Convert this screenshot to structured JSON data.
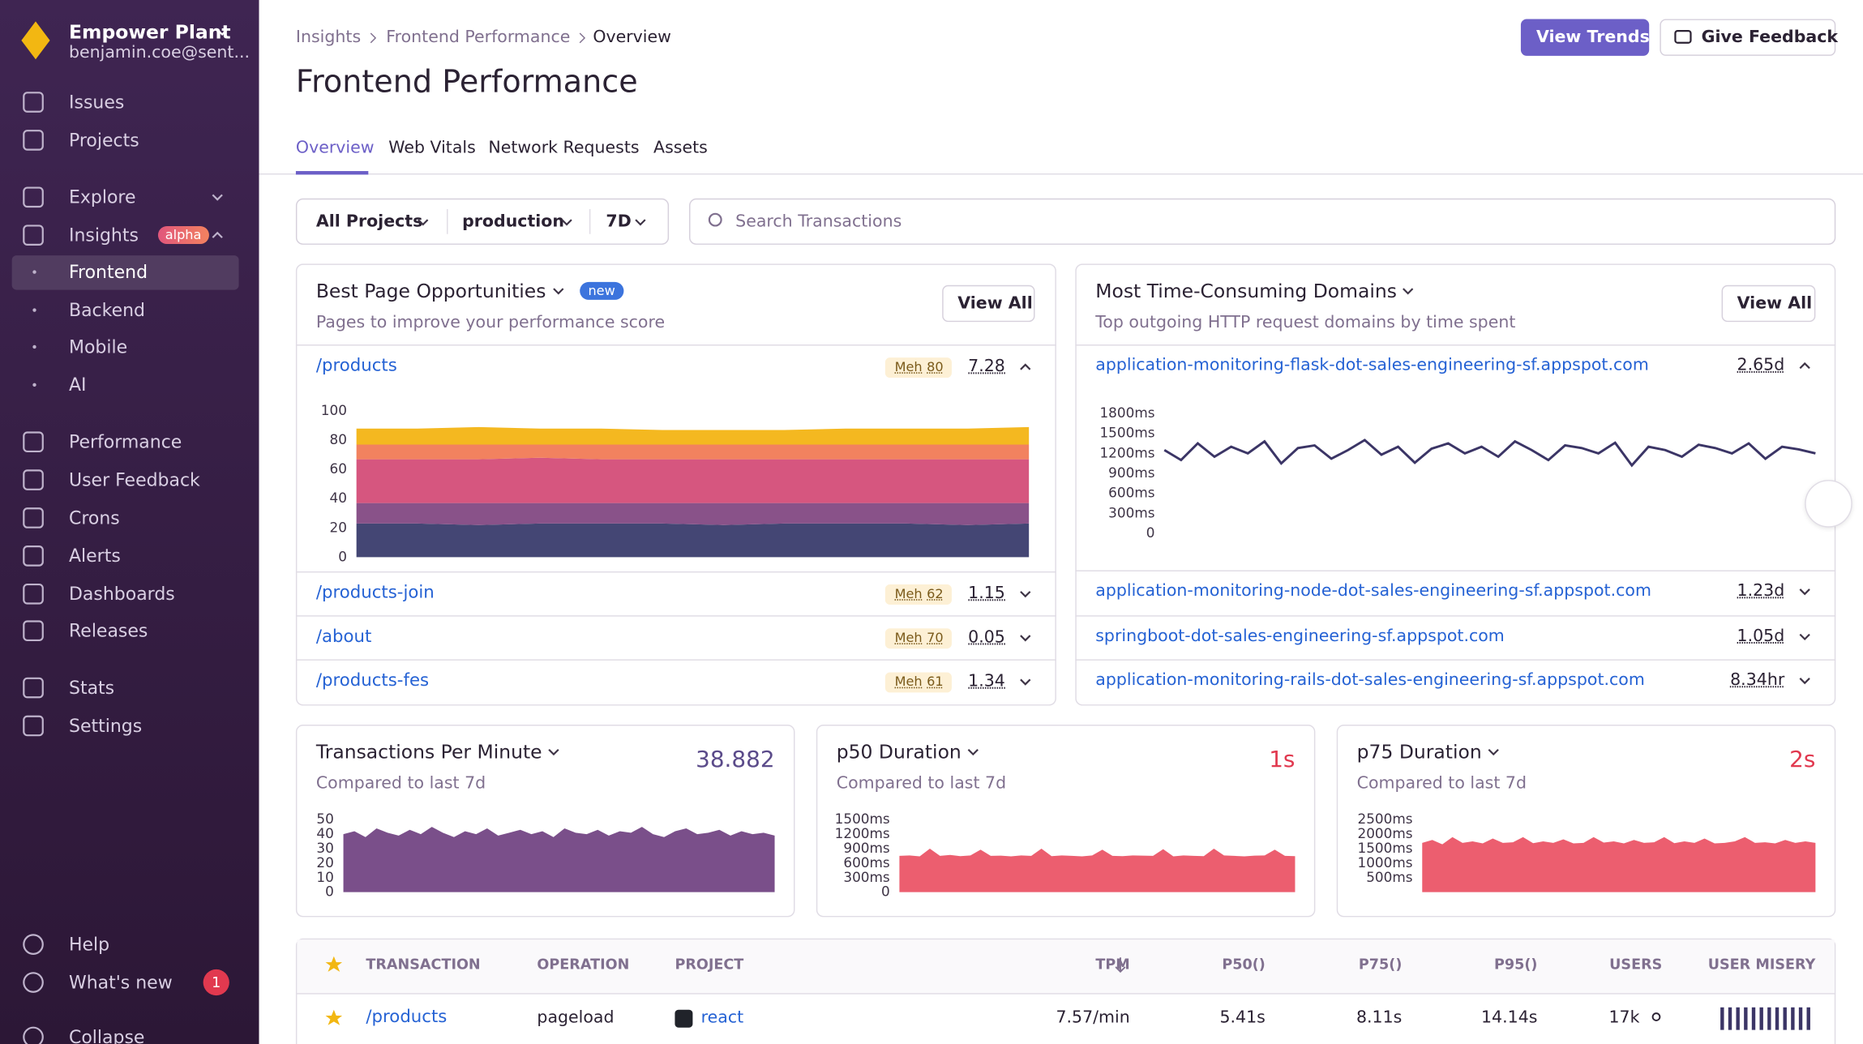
{
  "sidebar": {
    "org": "Empower Plant",
    "user": "benjamin.coe@sent...",
    "nav": [
      "Issues",
      "Projects",
      "Explore",
      "Insights"
    ],
    "insights_badge": "alpha",
    "insights_sub": [
      "Frontend",
      "Backend",
      "Mobile",
      "AI"
    ],
    "nav2": [
      "Performance",
      "User Feedback",
      "Crons",
      "Alerts",
      "Dashboards",
      "Releases"
    ],
    "nav3": [
      "Stats",
      "Settings"
    ],
    "footer": [
      "Help",
      "What's new",
      "Collapse"
    ],
    "whats_new_count": 1
  },
  "header": {
    "breadcrumbs": [
      "Insights",
      "Frontend Performance",
      "Overview"
    ],
    "title": "Frontend Performance",
    "buttons": [
      "View Trends",
      "Give Feedback"
    ],
    "tabs": [
      "Overview",
      "Web Vitals",
      "Network Requests",
      "Assets"
    ]
  },
  "filters": {
    "project": "All Projects",
    "environment": "production",
    "period": "7D",
    "search_placeholder": "Search Transactions"
  },
  "page_opportunities": {
    "title": "Best Page Opportunities",
    "badge": "new",
    "subtitle": "Pages to improve your performance score",
    "action": "View All",
    "rows": [
      {
        "page": "/products",
        "rating": "Meh",
        "score": 80,
        "value": 7.28
      },
      {
        "page": "/products-join",
        "rating": "Meh",
        "score": 62,
        "value": 1.15
      },
      {
        "page": "/about",
        "rating": "Meh",
        "score": 70,
        "value": 0.05
      },
      {
        "page": "/products-fes",
        "rating": "Meh",
        "score": 61,
        "value": 1.34
      }
    ],
    "chart": {
      "type": "area",
      "stacked": true,
      "ylim": [
        0,
        100
      ],
      "yticks": [
        0,
        20,
        40,
        60,
        80,
        100
      ],
      "grid": false,
      "series": [
        {
          "color": "#444674",
          "values": [
            23,
            23,
            22,
            23,
            23,
            23,
            22,
            23,
            23,
            23,
            22,
            23
          ]
        },
        {
          "color": "#895289",
          "values": [
            14,
            14,
            15,
            14,
            14,
            14,
            15,
            14,
            14,
            14,
            15,
            14
          ]
        },
        {
          "color": "#d6567f",
          "values": [
            30,
            30,
            30,
            31,
            30,
            30,
            30,
            30,
            30,
            30,
            30,
            30
          ]
        },
        {
          "color": "#f2825f",
          "values": [
            10,
            10,
            10,
            9,
            10,
            10,
            10,
            10,
            10,
            10,
            10,
            10
          ]
        },
        {
          "color": "#f4b820",
          "values": [
            11,
            11,
            12,
            11,
            11,
            10,
            10,
            10,
            11,
            11,
            11,
            12
          ]
        }
      ]
    }
  },
  "domains": {
    "title": "Most Time-Consuming Domains",
    "subtitle": "Top outgoing HTTP request domains by time spent",
    "action": "View All",
    "rows": [
      {
        "domain": "application-monitoring-flask-dot-sales-engineering-sf.appspot.com",
        "value": "2.65d"
      },
      {
        "domain": "application-monitoring-node-dot-sales-engineering-sf.appspot.com",
        "value": "1.23d"
      },
      {
        "domain": "springboot-dot-sales-engineering-sf.appspot.com",
        "value": "1.05d"
      },
      {
        "domain": "application-monitoring-rails-dot-sales-engineering-sf.appspot.com",
        "value": "8.34hr"
      }
    ],
    "chart": {
      "type": "line",
      "ylim": [
        0,
        1800
      ],
      "yticks": [
        0,
        {
          "value": 300,
          "label": "300ms"
        },
        {
          "value": 600,
          "label": "600ms"
        },
        {
          "value": 900,
          "label": "900ms"
        },
        {
          "value": 1200,
          "label": "1200ms"
        },
        {
          "value": 1500,
          "label": "1500ms"
        },
        {
          "value": 1800,
          "label": "1800ms"
        }
      ],
      "grid": false,
      "series": [
        {
          "color": "#3b3566",
          "values": [
            1250,
            1100,
            1350,
            1150,
            1300,
            1200,
            1380,
            1050,
            1280,
            1320,
            1120,
            1250,
            1400,
            1180,
            1300,
            1060,
            1270,
            1350,
            1200,
            1300,
            1150,
            1380,
            1250,
            1100,
            1320,
            1280,
            1200,
            1360,
            1020,
            1300,
            1250,
            1150,
            1330,
            1280,
            1200,
            1350,
            1120,
            1300,
            1260,
            1200
          ]
        }
      ]
    }
  },
  "cards": [
    {
      "title": "Transactions Per Minute",
      "value": 38.882,
      "subtitle": "Compared to last 7d",
      "chart": {
        "type": "area",
        "ylim": [
          0,
          50
        ],
        "yticks": [
          0,
          10,
          20,
          30,
          40,
          50
        ],
        "grid": false,
        "series": [
          {
            "color": "#7a4f8a",
            "values": [
              40,
              42,
              38,
              44,
              41,
              39,
              43,
              40,
              45,
              41,
              38,
              42,
              40,
              44,
              39,
              41,
              43,
              40,
              42,
              38,
              44,
              41,
              40,
              43,
              39,
              42,
              41,
              45,
              40,
              38,
              42,
              44,
              40,
              41,
              43,
              39,
              42,
              40,
              41,
              39
            ]
          }
        ]
      }
    },
    {
      "title": "p50 Duration",
      "value": "1s",
      "subtitle": "Compared to last 7d",
      "chart": {
        "type": "area",
        "ylim": [
          0,
          1500
        ],
        "yticks": [
          0,
          {
            "value": 300,
            "label": "300ms"
          },
          {
            "value": 600,
            "label": "600ms"
          },
          {
            "value": 900,
            "label": "900ms"
          },
          {
            "value": 1200,
            "label": "1200ms"
          },
          {
            "value": 1500,
            "label": "1500ms"
          }
        ],
        "grid": false,
        "series": [
          {
            "color": "#ec5e6f",
            "values": [
              750,
              760,
              740,
              900,
              750,
              770,
              745,
              760,
              880,
              750,
              755,
              740,
              760,
              750,
              900,
              745,
              760,
              750,
              740,
              760,
              880,
              750,
              745,
              760,
              755,
              750,
              890,
              740,
              760,
              750,
              745,
              900,
              760,
              750,
              740,
              755,
              760,
              880,
              750,
              745
            ]
          }
        ]
      }
    },
    {
      "title": "p75 Duration",
      "value": "2s",
      "subtitle": "Compared to last 7d",
      "chart": {
        "type": "area",
        "ylim": [
          0,
          2500
        ],
        "yticks": [
          {
            "value": 500,
            "label": "500ms"
          },
          {
            "value": 1000,
            "label": "1000ms"
          },
          {
            "value": 1500,
            "label": "1500ms"
          },
          {
            "value": 2000,
            "label": "2000ms"
          },
          {
            "value": 2500,
            "label": "2500ms"
          }
        ],
        "grid": false,
        "series": [
          {
            "color": "#ec5e6f",
            "values": [
              1700,
              1800,
              1650,
              1900,
              1700,
              1750,
              1680,
              1850,
              1700,
              1720,
              1900,
              1690,
              1750,
              1700,
              1820,
              1680,
              1700,
              1900,
              1710,
              1750,
              1680,
              1800,
              1700,
              1720,
              1900,
              1690,
              1750,
              1700,
              1850,
              1680,
              1700,
              1750,
              1900,
              1700,
              1720,
              1680,
              1800,
              1700,
              1750,
              1700
            ]
          }
        ]
      }
    }
  ],
  "table": {
    "columns": [
      "TRANSACTION",
      "OPERATION",
      "PROJECT",
      "TPM",
      "P50()",
      "P75()",
      "P95()",
      "USERS",
      "USER MISERY"
    ],
    "rows": [
      [
        "/products",
        "pageload",
        "react",
        "7.57/min",
        "5.41s",
        "8.11s",
        "14.14s",
        "17k"
      ]
    ]
  }
}
